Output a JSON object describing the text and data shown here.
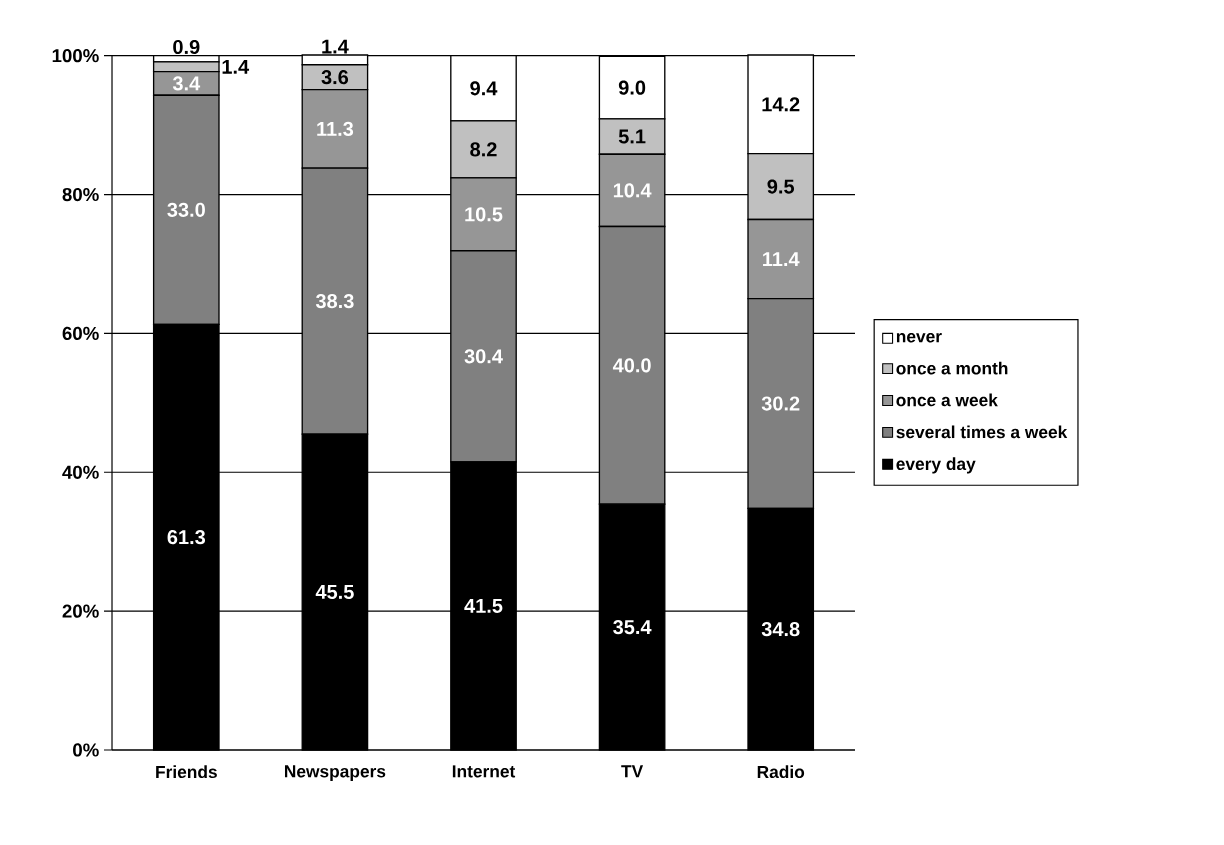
{
  "chart_data": {
    "type": "bar",
    "stacked": true,
    "categories": [
      "Friends",
      "Newspapers",
      "Internet",
      "TV",
      "Radio"
    ],
    "series": [
      {
        "name": "every day",
        "color": "#000000",
        "values": [
          61.3,
          45.5,
          41.5,
          35.4,
          34.8
        ],
        "value_labels": [
          "61.3",
          "45.5",
          "41.5",
          "35.4",
          "34.8"
        ]
      },
      {
        "name": "several times a week",
        "color": "#808080",
        "values": [
          33.0,
          38.3,
          30.4,
          40.0,
          30.2
        ],
        "value_labels": [
          "33.0",
          "38.3",
          "30.4",
          "40.0",
          "30.2"
        ]
      },
      {
        "name": "once a week",
        "color": "#969696",
        "values": [
          3.4,
          11.3,
          10.5,
          10.4,
          11.4
        ],
        "value_labels": [
          "3.4",
          "11.3",
          "10.5",
          "10.4",
          "11.4"
        ]
      },
      {
        "name": "once a month",
        "color": "#c0c0c0",
        "values": [
          1.4,
          3.6,
          8.2,
          5.1,
          9.5
        ],
        "value_labels": [
          "1.4",
          "3.6",
          "8.2",
          "5.1",
          "9.5"
        ]
      },
      {
        "name": "never",
        "color": "#ffffff",
        "values": [
          0.9,
          1.4,
          9.4,
          9.0,
          14.2
        ],
        "value_labels": [
          "0.9",
          "1.4",
          "9.4",
          "9.0",
          "14.2"
        ]
      }
    ],
    "ylim": [
      0,
      100.1
    ],
    "yticks": [
      {
        "value": 0,
        "label": "0%"
      },
      {
        "value": 20,
        "label": "20%"
      },
      {
        "value": 40,
        "label": "40%"
      },
      {
        "value": 60,
        "label": "60%"
      },
      {
        "value": 80,
        "label": "80%"
      },
      {
        "value": 100,
        "label": "100%"
      }
    ],
    "grid": "y",
    "legend": "right"
  }
}
